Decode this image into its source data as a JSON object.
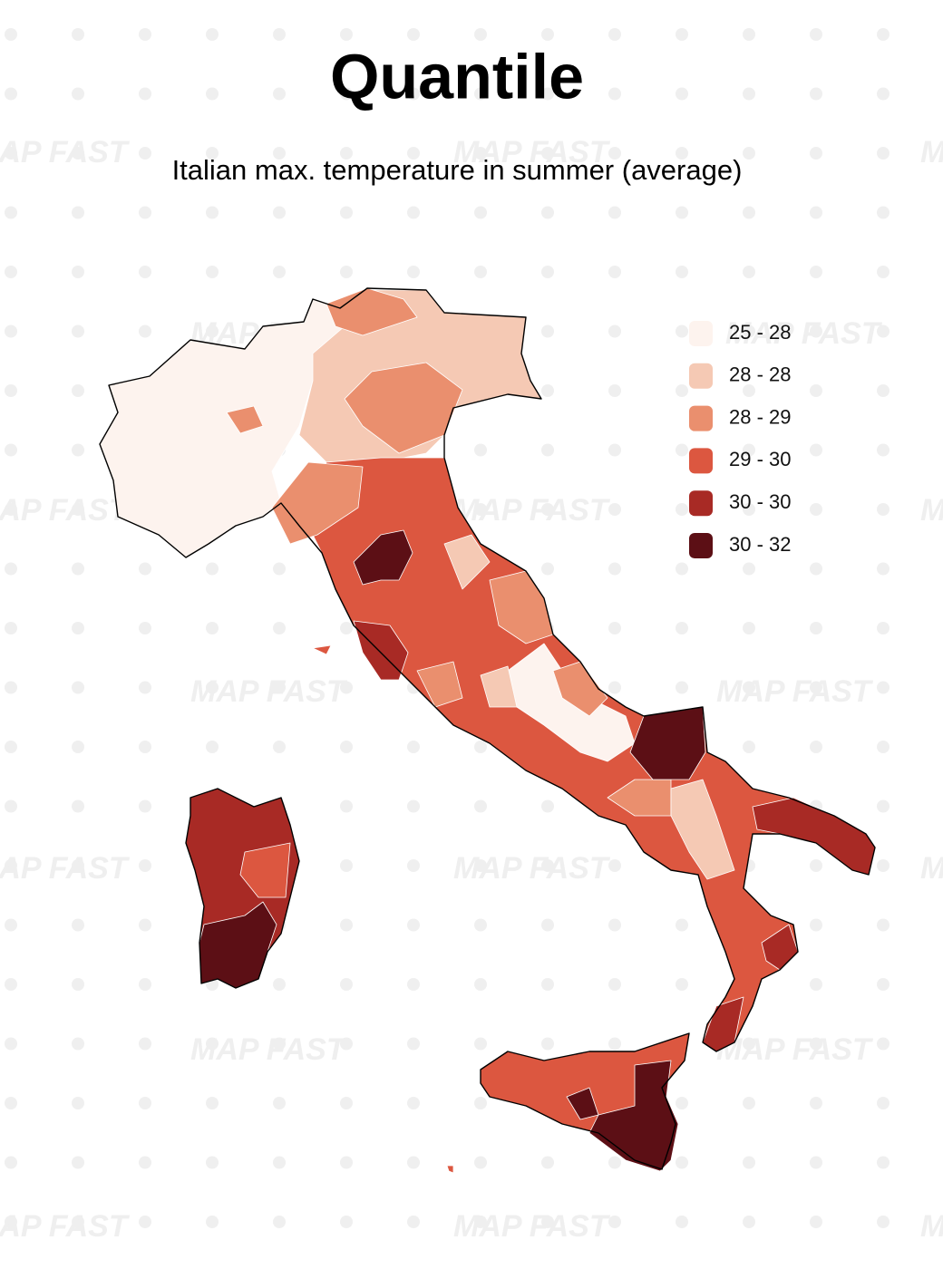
{
  "title": "Quantile",
  "subtitle": "Italian max. temperature in summer (average)",
  "watermark": "MAP FAST",
  "legend": [
    {
      "label": "25 - 28",
      "color": "#fdf3ee"
    },
    {
      "label": "28 - 28",
      "color": "#f5c9b4"
    },
    {
      "label": "28 - 29",
      "color": "#ea8f6e"
    },
    {
      "label": "29 - 30",
      "color": "#dc5740"
    },
    {
      "label": "30 - 30",
      "color": "#a82a25"
    },
    {
      "label": "30 - 32",
      "color": "#5c0f15"
    }
  ]
}
